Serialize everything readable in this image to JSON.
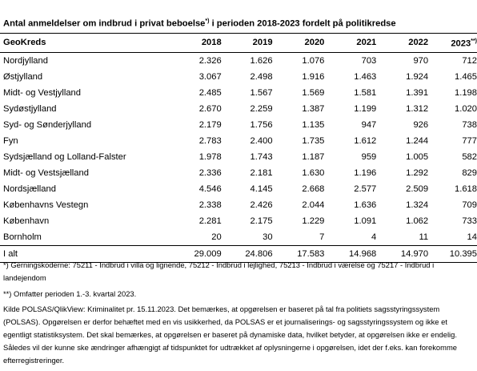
{
  "title": {
    "part1": "Antal anmeldelser om indbrud i privat beboelse",
    "mark": "*)",
    "part2": " i perioden 2018-2023 fordelt på politikredse"
  },
  "table": {
    "headers": [
      "GeoKreds",
      "2018",
      "2019",
      "2020",
      "2021",
      "2022",
      "2023"
    ],
    "last_header_mark": "**)",
    "rows": [
      [
        "Nordjylland",
        "2.326",
        "1.626",
        "1.076",
        "703",
        "970",
        "712"
      ],
      [
        "Østjylland",
        "3.067",
        "2.498",
        "1.916",
        "1.463",
        "1.924",
        "1.465"
      ],
      [
        "Midt- og Vestjylland",
        "2.485",
        "1.567",
        "1.569",
        "1.581",
        "1.391",
        "1.198"
      ],
      [
        "Sydøstjylland",
        "2.670",
        "2.259",
        "1.387",
        "1.199",
        "1.312",
        "1.020"
      ],
      [
        "Syd- og Sønderjylland",
        "2.179",
        "1.756",
        "1.135",
        "947",
        "926",
        "738"
      ],
      [
        "Fyn",
        "2.783",
        "2.400",
        "1.735",
        "1.612",
        "1.244",
        "777"
      ],
      [
        "Sydsjælland og Lolland-Falster",
        "1.978",
        "1.743",
        "1.187",
        "959",
        "1.005",
        "582"
      ],
      [
        "Midt- og Vestsjælland",
        "2.336",
        "2.181",
        "1.630",
        "1.196",
        "1.292",
        "829"
      ],
      [
        "Nordsjælland",
        "4.546",
        "4.145",
        "2.668",
        "2.577",
        "2.509",
        "1.618"
      ],
      [
        "Københavns Vestegn",
        "2.338",
        "2.426",
        "2.044",
        "1.636",
        "1.324",
        "709"
      ],
      [
        "København",
        "2.281",
        "2.175",
        "1.229",
        "1.091",
        "1.062",
        "733"
      ],
      [
        "Bornholm",
        "20",
        "30",
        "7",
        "4",
        "11",
        "14"
      ]
    ],
    "total": [
      "I alt",
      "29.009",
      "24.806",
      "17.583",
      "14.968",
      "14.970",
      "10.395"
    ]
  },
  "notes": {
    "note1_mark": "*)",
    "note1_text": " Gerningskoderne: 75211 - Indbrud i villa og lignende, 75212 - Indbrud i lejlighed, 75213 - Indbrud i værelse og 75217 - Indbrud i landejendom",
    "note2_mark": "**)",
    "note2_text": " Omfatter perioden 1.-3. kvartal 2023.",
    "source": "Kilde POLSAS/QlikView: Kriminalitet pr. 15.11.2023. Det bemærkes, at opgørelsen er baseret på tal fra politiets sagsstyringssystem (POLSAS). Opgørelsen er derfor behæftet med en vis usikkerhed, da POLSAS er et journaliserings- og sagsstyringssystem og ikke et egentligt statistiksystem. Det skal bemærkes, at opgørelsen er baseret på dynamiske data, hvilket betyder, at opgørelsen ikke er endelig. Således vil der kunne ske ændringer afhængigt af tidspunktet for udtrækket af oplysningerne i opgørelsen, idet der f.eks. kan forekomme efterregistreringer."
  }
}
